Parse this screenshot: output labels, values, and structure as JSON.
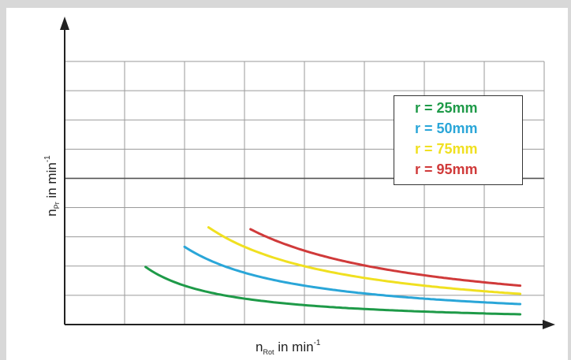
{
  "chart_data": {
    "type": "line",
    "title": "",
    "xlabel": {
      "base": "n",
      "sub": "Rot",
      "text": " in min",
      "sup": "-1"
    },
    "ylabel": {
      "base": "n",
      "sub": "Pr",
      "text": " in min",
      "sup": "-1"
    },
    "grid": true,
    "legend_position": "top-right",
    "x_ticks": 8,
    "y_ticks": 9,
    "series": [
      {
        "name": "r = 25mm",
        "color": "#1e9a48",
        "c": 2660,
        "x": [
          1.35,
          7.6
        ]
      },
      {
        "name": "r = 50mm",
        "color": "#2aa6d8",
        "c": 5320,
        "x": [
          2.0,
          7.6
        ]
      },
      {
        "name": "r = 75mm",
        "color": "#f0e020",
        "c": 7980,
        "x": [
          2.4,
          7.6
        ]
      },
      {
        "name": "r = 95mm",
        "color": "#d03a3a",
        "c": 10110,
        "x": [
          3.1,
          7.6
        ]
      }
    ]
  }
}
